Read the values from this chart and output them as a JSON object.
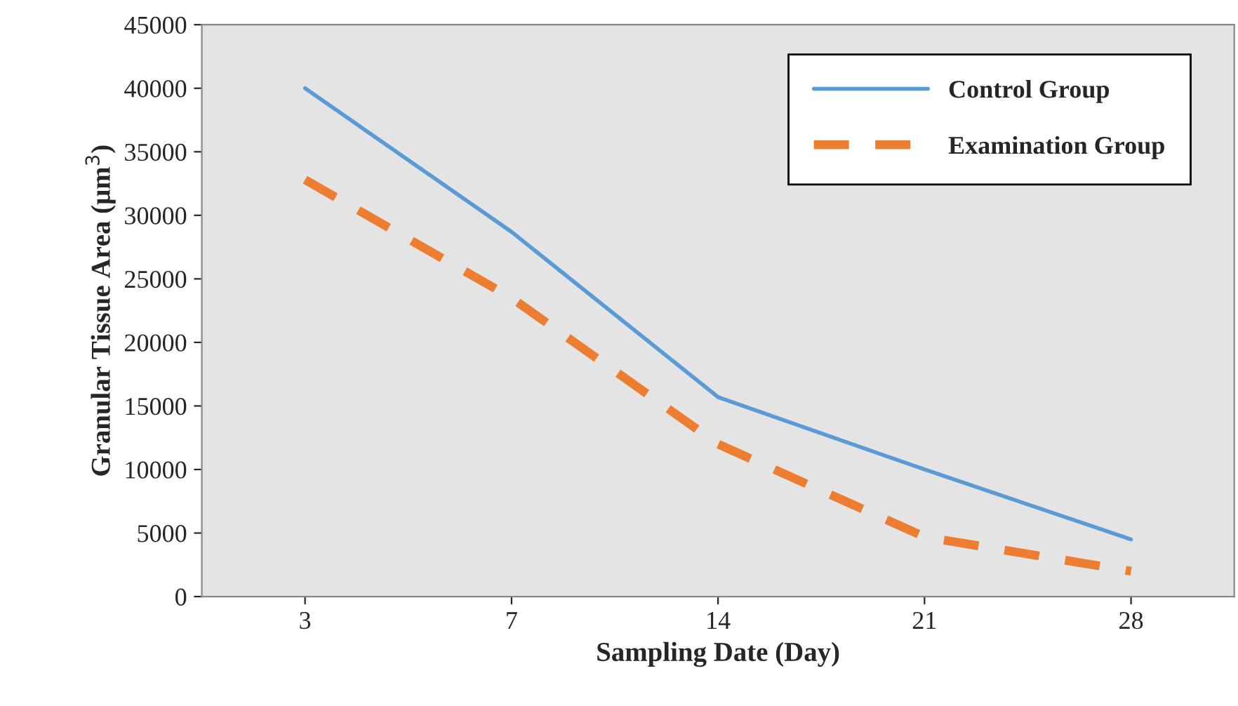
{
  "chart_data": {
    "type": "line",
    "xlabel": "Sampling Date (Day)",
    "ylabel": "Granular Tissue Area (μm$^{3}$)",
    "categories": [
      "3",
      "7",
      "14",
      "21",
      "28"
    ],
    "series": [
      {
        "name": "Control Group",
        "color": "#5b9bd5",
        "line_style": "solid",
        "values": [
          40000,
          28700,
          15700,
          10000,
          4500
        ]
      },
      {
        "name": "Examination Group",
        "color": "#ed7d31",
        "line_style": "dashed",
        "values": [
          32800,
          23500,
          12000,
          4700,
          2000
        ]
      }
    ],
    "ylim": [
      0,
      45000
    ],
    "yticks": [
      0,
      5000,
      10000,
      15000,
      20000,
      25000,
      30000,
      35000,
      40000,
      45000
    ],
    "legend": "top right"
  }
}
